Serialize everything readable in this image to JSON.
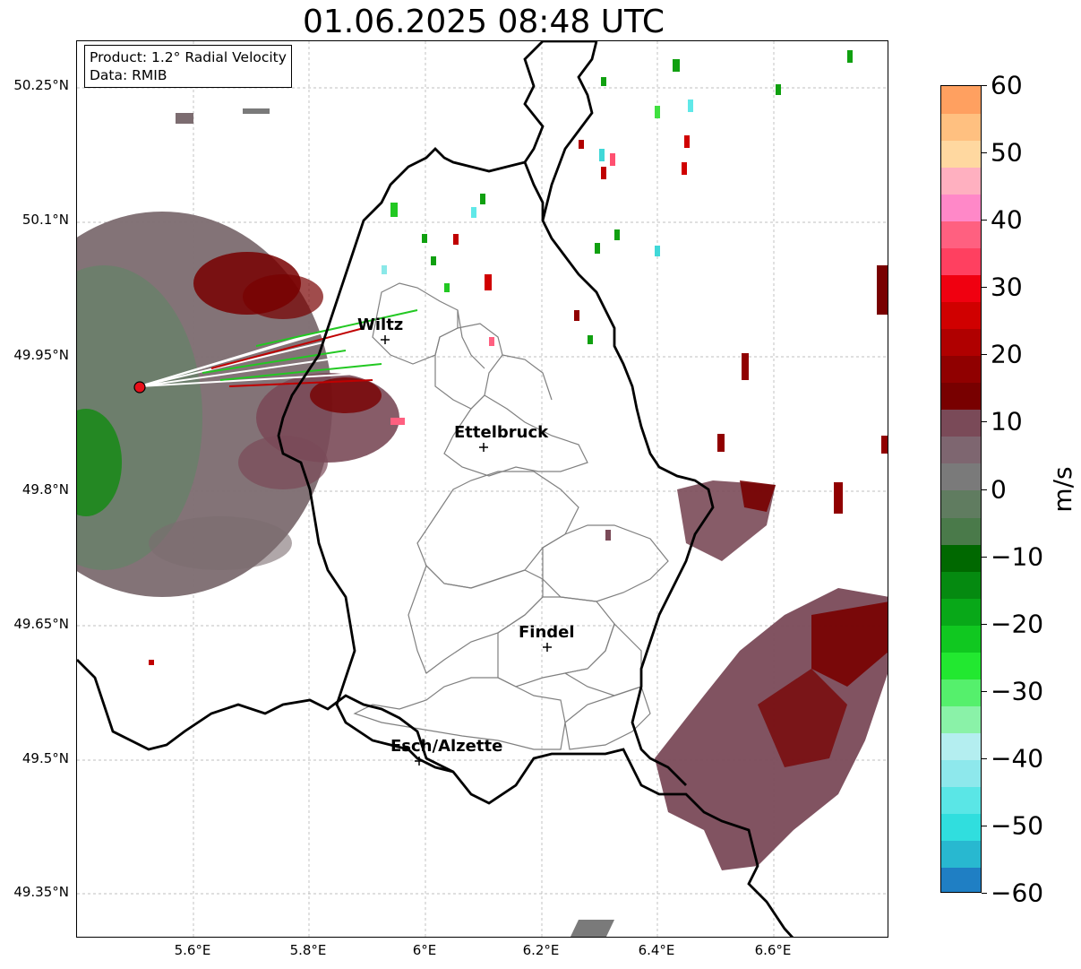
{
  "title": "01.06.2025 08:48 UTC",
  "info": {
    "product": "Product: 1.2° Radial Velocity",
    "data": "Data: RMIB"
  },
  "axes": {
    "lat_ticks": [
      "50.25°N",
      "50.1°N",
      "49.95°N",
      "49.8°N",
      "49.65°N",
      "49.5°N",
      "49.35°N"
    ],
    "lon_ticks": [
      "5.6°E",
      "5.8°E",
      "6°E",
      "6.2°E",
      "6.4°E",
      "6.6°E"
    ]
  },
  "cities": [
    {
      "name": "Wiltz",
      "marker": "cross-icon"
    },
    {
      "name": "Ettelbruck",
      "marker": "cross-icon"
    },
    {
      "name": "Findel",
      "marker": "cross-icon"
    },
    {
      "name": "Esch/Alzette",
      "marker": "cross-icon"
    }
  ],
  "radar_site": {
    "marker": "radar-site-icon",
    "color": "#e8101a"
  },
  "colorbar": {
    "unit": "m/s",
    "ticks": [
      "60",
      "50",
      "40",
      "30",
      "20",
      "10",
      "0",
      "−10",
      "−20",
      "−30",
      "−40",
      "−50",
      "−60"
    ],
    "range": [
      -60,
      60
    ],
    "colors": [
      "#1f7fc4",
      "#28b8d0",
      "#30dede",
      "#5ae6e6",
      "#8ee8ec",
      "#b4eef0",
      "#8af2a8",
      "#55f06c",
      "#22e830",
      "#10c820",
      "#08a818",
      "#058a10",
      "#006800",
      "#4a7a4a",
      "#607c60",
      "#7a7a7a",
      "#7e6670",
      "#7a4a58",
      "#780000",
      "#900000",
      "#b00000",
      "#d00000",
      "#f00010",
      "#ff4060",
      "#ff6080",
      "#ff88c8",
      "#ffb0c0",
      "#ffd8a0",
      "#ffc080",
      "#ffa060"
    ]
  }
}
